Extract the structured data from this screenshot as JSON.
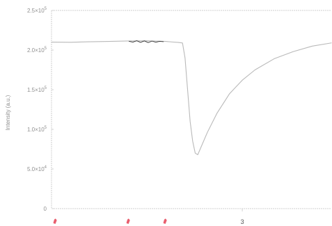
{
  "chart_data": {
    "type": "line",
    "title": "",
    "xlabel": "",
    "ylabel": "Intensity (a.u.)",
    "xlim": [
      0,
      4.4
    ],
    "ylim": [
      0,
      250000
    ],
    "x_ticks": [
      {
        "value": 3,
        "label": "3"
      }
    ],
    "y_ticks": [
      {
        "value": 0,
        "label": "0",
        "exp": ""
      },
      {
        "value": 50000,
        "label": "5.0×10",
        "exp": "4"
      },
      {
        "value": 100000,
        "label": "1.0×10",
        "exp": "5"
      },
      {
        "value": 150000,
        "label": "1.5×10",
        "exp": "5"
      },
      {
        "value": 200000,
        "label": "2.0×10",
        "exp": "5"
      },
      {
        "value": 250000,
        "label": "2.5×10",
        "exp": "5"
      }
    ],
    "grid": false,
    "legend": "none",
    "series": [
      {
        "color": "#b9b9b9",
        "points": [
          [
            0.0,
            210000
          ],
          [
            0.3,
            209800
          ],
          [
            0.6,
            210500
          ],
          [
            0.9,
            210900
          ],
          [
            1.2,
            211500
          ],
          [
            1.5,
            211800
          ],
          [
            1.8,
            210900
          ],
          [
            1.9,
            210200
          ],
          [
            2.0,
            209600
          ],
          [
            2.06,
            208900
          ],
          [
            2.1,
            190000
          ],
          [
            2.14,
            150000
          ],
          [
            2.18,
            110000
          ],
          [
            2.22,
            85000
          ],
          [
            2.26,
            70000
          ],
          [
            2.3,
            68000
          ],
          [
            2.45,
            96000
          ],
          [
            2.6,
            120000
          ],
          [
            2.8,
            145000
          ],
          [
            3.0,
            162000
          ],
          [
            3.2,
            175000
          ],
          [
            3.5,
            189000
          ],
          [
            3.8,
            198000
          ],
          [
            4.1,
            205000
          ],
          [
            4.4,
            209000
          ]
        ]
      },
      {
        "color": "#333333",
        "points": [
          [
            1.22,
            211000
          ],
          [
            1.28,
            210000
          ],
          [
            1.34,
            211800
          ],
          [
            1.4,
            209700
          ],
          [
            1.46,
            211600
          ],
          [
            1.52,
            209500
          ],
          [
            1.58,
            211300
          ],
          [
            1.64,
            209900
          ],
          [
            1.7,
            211000
          ],
          [
            1.76,
            210600
          ]
        ]
      }
    ],
    "bottom_marks": [
      {
        "x": 0.05
      },
      {
        "x": 1.2
      },
      {
        "x": 1.78
      }
    ]
  }
}
